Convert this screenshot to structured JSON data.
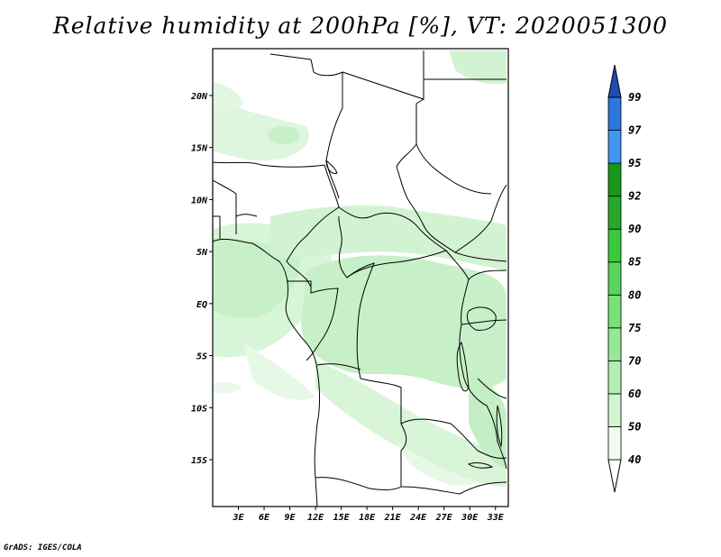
{
  "title": "Relative humidity at 200hPa [%], VT: 2020051300",
  "credit": "GrADS: IGES/COLA",
  "map": {
    "lat_labels": [
      "20N",
      "15N",
      "10N",
      "5N",
      "EQ",
      "5S",
      "10S",
      "15S"
    ],
    "lat_values": [
      20,
      15,
      10,
      5,
      0,
      -5,
      -10,
      -15
    ],
    "lon_labels": [
      "3E",
      "6E",
      "9E",
      "12E",
      "15E",
      "18E",
      "21E",
      "24E",
      "27E",
      "30E",
      "33E"
    ],
    "lon_values": [
      3,
      6,
      9,
      12,
      15,
      18,
      21,
      24,
      27,
      30,
      33
    ],
    "lon_range": [
      0,
      34.5
    ],
    "lat_range": [
      -19.5,
      24.5
    ]
  },
  "legend": {
    "levels": [
      "40",
      "50",
      "60",
      "70",
      "75",
      "80",
      "85",
      "90",
      "92",
      "95",
      "97",
      "99"
    ],
    "colors": [
      "#f0fcf0",
      "#d2f5d2",
      "#b4eeb4",
      "#96e896",
      "#78e178",
      "#5ad45a",
      "#3cc83c",
      "#28a828",
      "#189818",
      "#4196f0",
      "#2b78dc",
      "#1e5ac8"
    ],
    "top_color": "#1e4bb4",
    "bottom_color": "#ffffff"
  },
  "colors": {
    "border": "#000000",
    "moist": "#c8f0c8",
    "moist_deep": "#b4eab4"
  }
}
